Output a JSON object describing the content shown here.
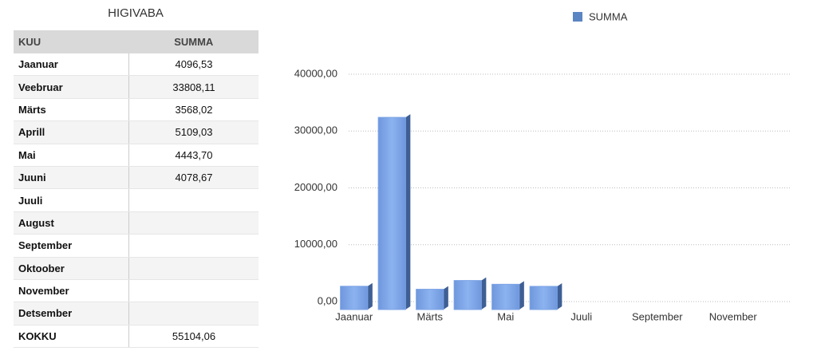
{
  "table": {
    "title": "HIGIVABA",
    "header": [
      "KUU",
      "SUMMA"
    ],
    "rows": [
      [
        "Jaanuar",
        "4096,53"
      ],
      [
        "Veebruar",
        "33808,11"
      ],
      [
        "Märts",
        "3568,02"
      ],
      [
        "Aprill",
        "5109,03"
      ],
      [
        "Mai",
        "4443,70"
      ],
      [
        "Juuni",
        "4078,67"
      ],
      [
        "Juuli"
      ],
      [
        "August"
      ],
      [
        "September"
      ],
      [
        "Oktoober"
      ],
      [
        "November"
      ],
      [
        "Detsember"
      ]
    ],
    "footer": [
      "KOKKU",
      "55104,06"
    ]
  },
  "chart_data": {
    "type": "bar",
    "categories": [
      "Jaanuar",
      null,
      "Märts",
      null,
      "Mai",
      null,
      "Juuli",
      null,
      "September",
      null,
      "November",
      null
    ],
    "series": [
      {
        "name": "SUMMA",
        "color": "#7ba3e6",
        "values": [
          4096.53,
          33808.11,
          3568.02,
          5109.03,
          4443.7,
          4078.67,
          null,
          null,
          null,
          null,
          null,
          null
        ]
      }
    ],
    "ylim": [
      0,
      40000
    ],
    "yticks": [
      {
        "value": 0,
        "label": "0,00"
      },
      {
        "value": 10000,
        "label": "10000,00"
      },
      {
        "value": 20000,
        "label": "20000,00"
      },
      {
        "value": 30000,
        "label": "30000,00"
      },
      {
        "value": 40000,
        "label": "40000,00"
      }
    ],
    "grid": true,
    "legend": "top"
  }
}
